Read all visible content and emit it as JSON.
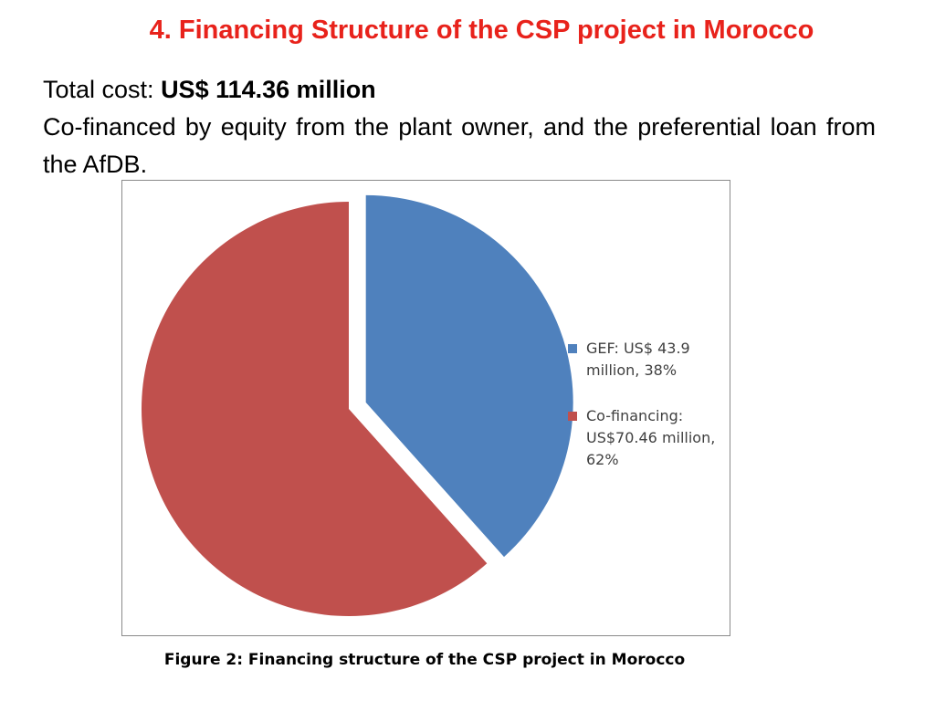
{
  "slide": {
    "title": "4. Financing Structure of the CSP project in Morocco",
    "total_cost_label": "Total cost: ",
    "total_cost_value": "US$ 114.36 million",
    "cofinance_text": "Co-financed by equity from the plant owner, and the preferential loan from the AfDB."
  },
  "chart_data": {
    "type": "pie",
    "title": "",
    "slices": [
      {
        "label": "GEF: US$ 43.9 million, 38%",
        "value": 43.9,
        "percent": 38,
        "color": "#4f81bd",
        "exploded": true
      },
      {
        "label": "Co-financing: US$70.46 million, 62%",
        "value": 70.46,
        "percent": 62,
        "color": "#c0504d",
        "exploded": false
      }
    ],
    "legend_position": "right"
  },
  "caption": "Figure 2:  Financing structure of the CSP project in Morocco"
}
